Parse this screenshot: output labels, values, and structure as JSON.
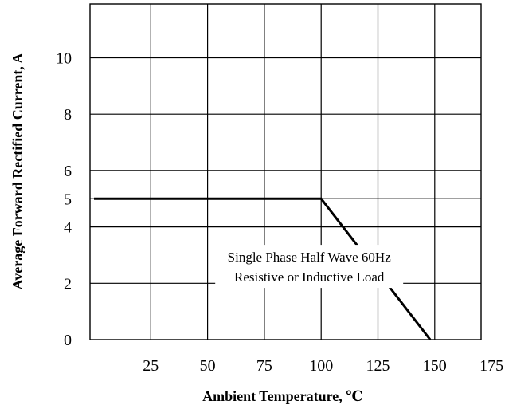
{
  "chart_data": {
    "type": "line",
    "xlabel": "Ambient Temperature, ℃",
    "ylabel": "Average Forward Rectified Current, A",
    "xlim": [
      0,
      175
    ],
    "ylim": [
      0,
      12
    ],
    "x_ticks": [
      25,
      50,
      75,
      100,
      125,
      150,
      175
    ],
    "y_ticks": [
      0,
      2,
      4,
      5,
      6,
      8,
      10
    ],
    "y_gridlines": [
      2,
      4,
      5,
      6,
      8,
      10
    ],
    "x_gridlines": [
      25,
      50,
      75,
      100,
      125,
      150
    ],
    "grid": true,
    "series": [
      {
        "x": [
          0,
          100,
          148
        ],
        "y": [
          5,
          5,
          0
        ]
      }
    ],
    "annotation": {
      "lines": [
        "Single Phase Half Wave 60Hz",
        "Resistive or Inductive Load"
      ],
      "x": 100,
      "y": 2.6
    }
  }
}
